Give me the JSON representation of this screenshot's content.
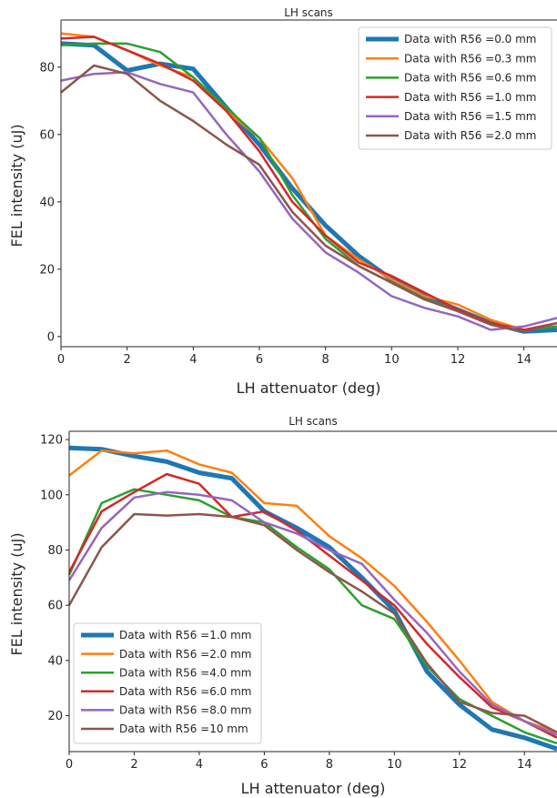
{
  "chart_data": [
    {
      "type": "line",
      "title": "LH scans",
      "xlabel": "LH attenuator (deg)",
      "ylabel": "FEL intensity (uJ)",
      "xlim": [
        0,
        15
      ],
      "ylim": [
        -3,
        94
      ],
      "xticks": [
        "0",
        "2",
        "4",
        "6",
        "8",
        "10",
        "12",
        "14"
      ],
      "yticks": [
        "0",
        "20",
        "40",
        "60",
        "80"
      ],
      "grid": false,
      "legend_position": "top-right",
      "x": [
        0,
        1,
        2,
        3,
        4,
        5,
        6,
        7,
        8,
        9,
        10,
        11,
        12,
        13,
        14,
        15
      ],
      "series": [
        {
          "name": "Data with R56 =0.0 mm",
          "color": "#1f77b4",
          "width": 5,
          "values": [
            87,
            86.5,
            79,
            81,
            79.5,
            68,
            57,
            44,
            33,
            24,
            17,
            12,
            8,
            4,
            1.5,
            2
          ]
        },
        {
          "name": "Data with R56 =0.3 mm",
          "color": "#ff7f0e",
          "width": 2.5,
          "values": [
            90,
            89,
            85,
            80.5,
            77,
            67,
            59,
            47,
            30,
            23,
            17,
            12,
            9.5,
            5,
            2,
            3
          ]
        },
        {
          "name": "Data with R56 =0.6 mm",
          "color": "#2ca02c",
          "width": 2.5,
          "values": [
            86.5,
            87,
            87,
            84.5,
            77,
            68,
            59,
            42,
            29,
            21,
            16,
            11,
            8,
            4,
            2,
            3
          ]
        },
        {
          "name": "Data with R56 =1.0 mm",
          "color": "#d62728",
          "width": 2.5,
          "values": [
            88.5,
            89,
            85,
            81,
            76,
            67,
            55,
            40,
            30,
            22,
            18,
            13,
            8,
            4,
            2,
            4
          ]
        },
        {
          "name": "Data with R56 =1.5 mm",
          "color": "#9467bd",
          "width": 2.5,
          "values": [
            76,
            78,
            78.5,
            75,
            72.5,
            60,
            49,
            35,
            25,
            19,
            12,
            8.5,
            6,
            2,
            3,
            5.5
          ]
        },
        {
          "name": "Data with R56 =2.0 mm",
          "color": "#8c564b",
          "width": 2.5,
          "values": [
            72.5,
            80.5,
            78,
            70,
            64,
            57,
            51,
            37,
            27,
            21,
            16,
            11,
            7.5,
            3.5,
            1.5,
            4
          ]
        }
      ]
    },
    {
      "type": "line",
      "title": "LH scans",
      "xlabel": "LH attenuator (deg)",
      "ylabel": "FEL intensity (uJ)",
      "xlim": [
        0,
        15
      ],
      "ylim": [
        7,
        123
      ],
      "xticks": [
        "0",
        "2",
        "4",
        "6",
        "8",
        "10",
        "12",
        "14"
      ],
      "yticks": [
        "20",
        "40",
        "60",
        "80",
        "100",
        "120"
      ],
      "grid": false,
      "legend_position": "lower-left",
      "x": [
        0,
        1,
        2,
        3,
        4,
        5,
        6,
        7,
        8,
        9,
        10,
        11,
        12,
        13,
        14,
        15
      ],
      "series": [
        {
          "name": "Data with R56 =1.0 mm",
          "color": "#1f77b4",
          "width": 5,
          "values": [
            117,
            116.5,
            114,
            112,
            108,
            106,
            94,
            88,
            81,
            70,
            58,
            36,
            24,
            15,
            12,
            8
          ]
        },
        {
          "name": "Data with R56 =2.0 mm",
          "color": "#ff7f0e",
          "width": 2.5,
          "values": [
            107,
            116,
            115,
            116,
            111,
            108,
            97,
            96,
            85,
            77,
            67,
            54,
            40,
            25,
            18,
            14
          ]
        },
        {
          "name": "Data with R56 =4.0 mm",
          "color": "#2ca02c",
          "width": 2.5,
          "values": [
            71,
            97,
            102,
            100,
            98,
            92,
            90,
            81,
            73,
            60,
            55,
            38,
            26,
            20,
            14,
            10
          ]
        },
        {
          "name": "Data with R56 =6.0 mm",
          "color": "#d62728",
          "width": 2.5,
          "values": [
            72,
            94,
            101,
            107.5,
            104,
            92,
            94,
            87,
            78,
            69,
            60,
            46,
            34,
            23,
            18,
            12
          ]
        },
        {
          "name": "Data with R56 =8.0 mm",
          "color": "#9467bd",
          "width": 2.5,
          "values": [
            69,
            88,
            99,
            101,
            100,
            98,
            90,
            86,
            80,
            75,
            62,
            50,
            36,
            24,
            18,
            13
          ]
        },
        {
          "name": "Data with R56 =10 mm",
          "color": "#8c564b",
          "width": 2.5,
          "values": [
            60,
            81,
            93,
            92.5,
            93,
            92,
            89,
            80,
            72,
            65,
            57,
            39,
            25,
            21,
            20,
            14
          ]
        }
      ]
    }
  ]
}
